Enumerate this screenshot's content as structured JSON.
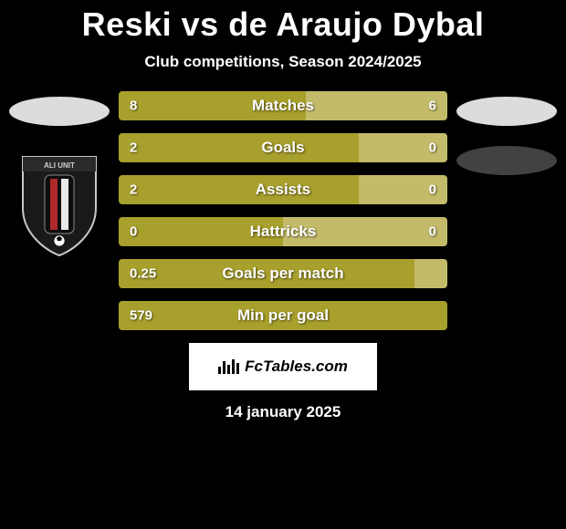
{
  "title": "Reski vs de Araujo Dybal",
  "subtitle": "Club competitions, Season 2024/2025",
  "date": "14 january 2025",
  "watermark": "FcTables.com",
  "colors": {
    "left_bar": "#a8a02c",
    "right_bar": "#c3bb6a",
    "bg": "#000000",
    "ellipse_left": "#dcdcdc",
    "ellipse_right": "#424242"
  },
  "stats": [
    {
      "label": "Matches",
      "l": "8",
      "r": "6",
      "l_pct": 57,
      "r_pct": 43
    },
    {
      "label": "Goals",
      "l": "2",
      "r": "0",
      "l_pct": 73,
      "r_pct": 27
    },
    {
      "label": "Assists",
      "l": "2",
      "r": "0",
      "l_pct": 73,
      "r_pct": 27
    },
    {
      "label": "Hattricks",
      "l": "0",
      "r": "0",
      "l_pct": 50,
      "r_pct": 50
    },
    {
      "label": "Goals per match",
      "l": "0.25",
      "r": "",
      "l_pct": 90,
      "r_pct": 10
    },
    {
      "label": "Min per goal",
      "l": "579",
      "r": "",
      "l_pct": 100,
      "r_pct": 0
    }
  ]
}
